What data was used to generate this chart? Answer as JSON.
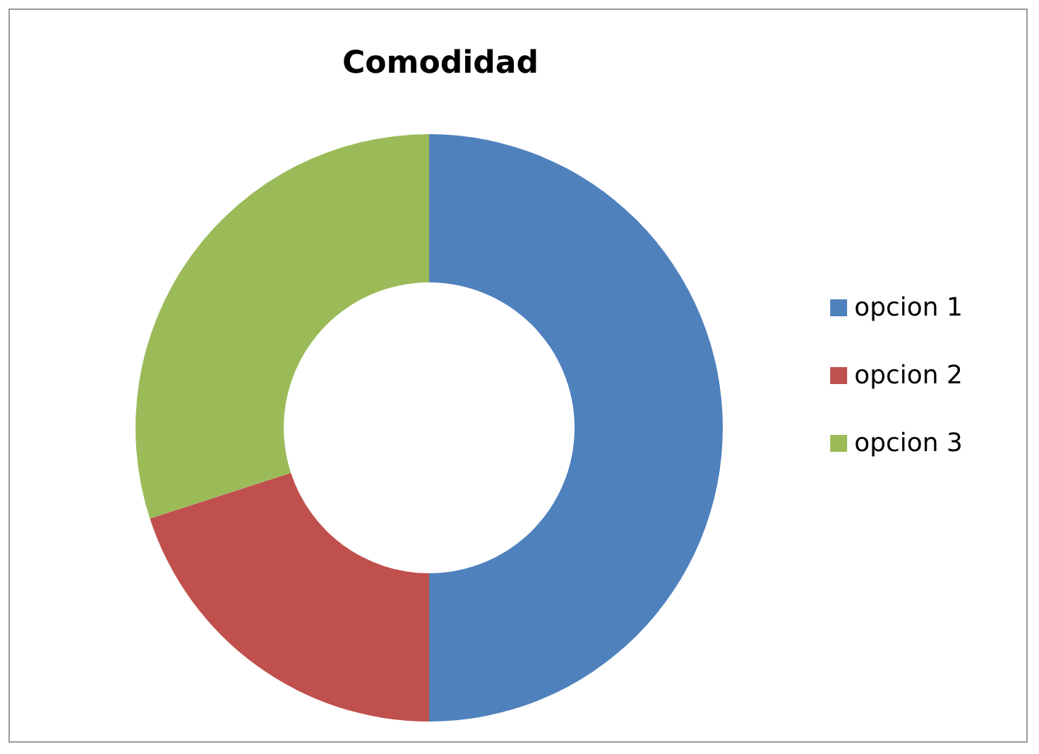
{
  "chart_data": {
    "type": "donut",
    "title": "Comodidad",
    "categories": [
      "opcion 1",
      "opcion 2",
      "opcion 3"
    ],
    "values": [
      50,
      20,
      30
    ],
    "colors": [
      "#4f81bd",
      "#c0504d",
      "#9bbb59"
    ],
    "legend": "right"
  }
}
